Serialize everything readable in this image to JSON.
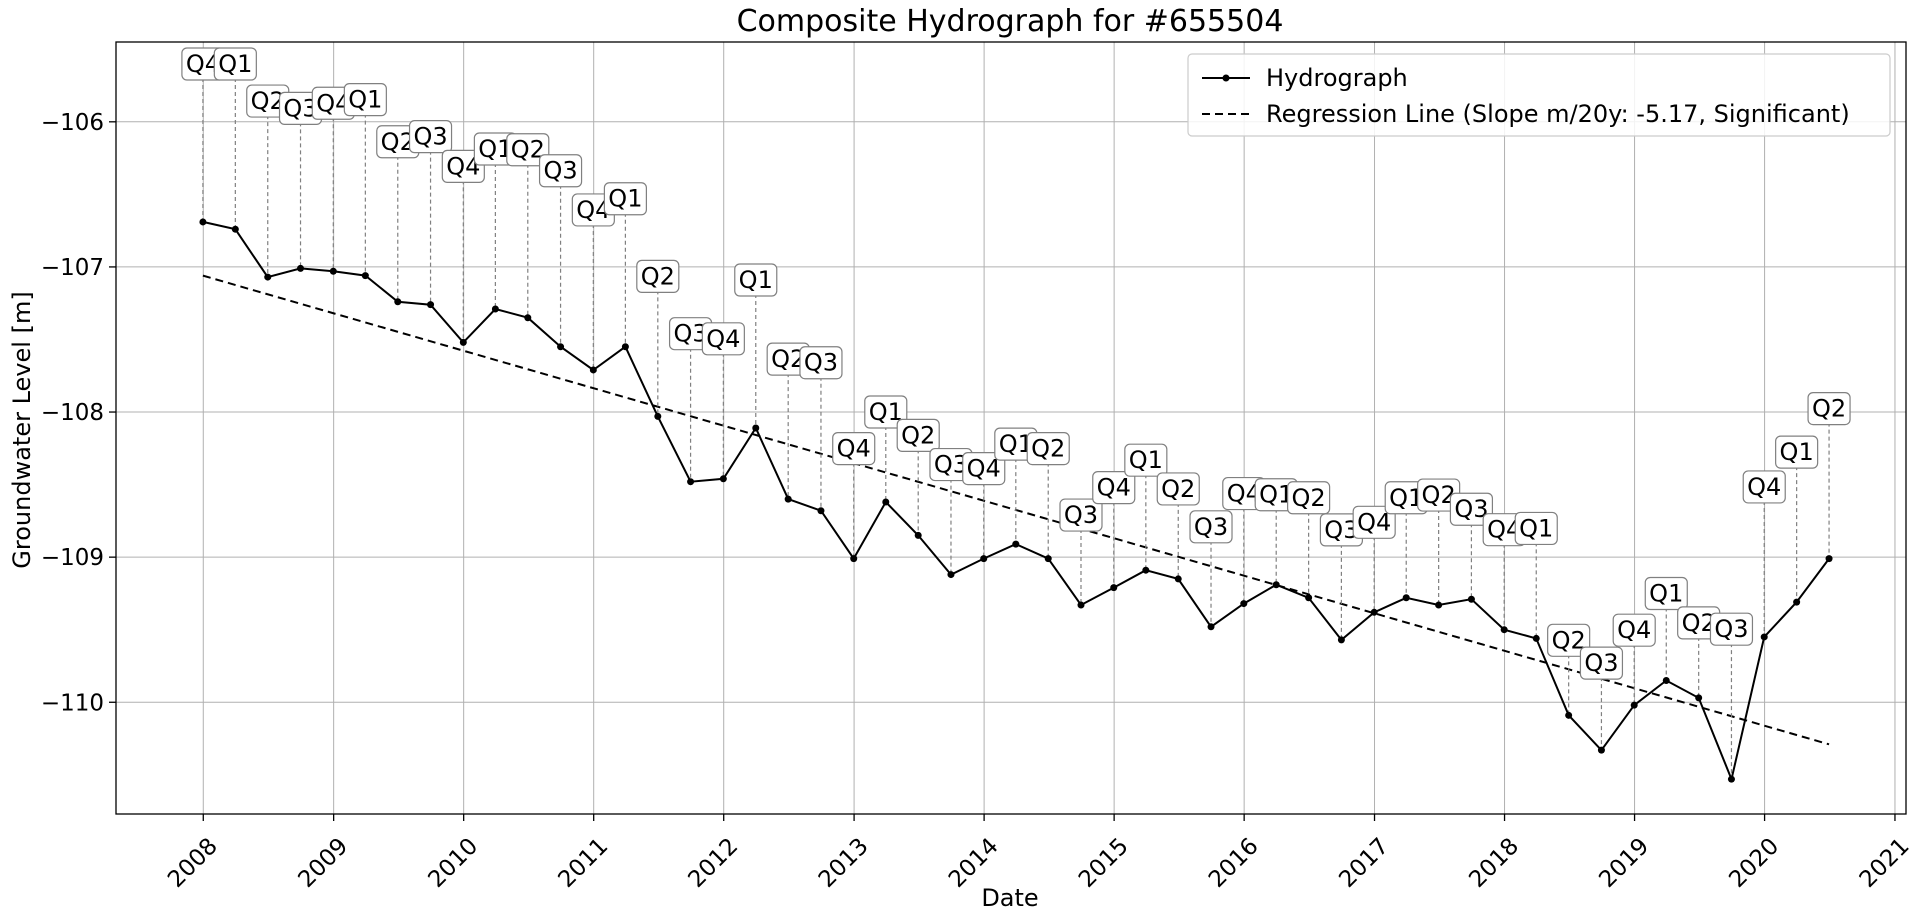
{
  "chart_data": {
    "type": "line",
    "title": "Composite Hydrograph for  #655504",
    "xlabel": "Date",
    "ylabel": "Groundwater Level [m]",
    "x_ticks": [
      "2008",
      "2009",
      "2010",
      "2011",
      "2012",
      "2013",
      "2014",
      "2015",
      "2016",
      "2017",
      "2018",
      "2019",
      "2020",
      "2021"
    ],
    "y_ticks": [
      "−106",
      "−107",
      "−108",
      "−109",
      "−110"
    ],
    "xlim": [
      "2007-05-01",
      "2021-02-01"
    ],
    "ylim": [
      -110.77,
      -105.45
    ],
    "grid": true,
    "legend_position": "top-right",
    "series": [
      {
        "name": "Hydrograph",
        "style": "solid-with-dots",
        "color": "#000000",
        "points": [
          {
            "date": "2007-12-31",
            "y": -106.69,
            "quarter": "Q4"
          },
          {
            "date": "2008-03-31",
            "y": -106.74,
            "quarter": "Q1"
          },
          {
            "date": "2008-06-30",
            "y": -107.07,
            "quarter": "Q2"
          },
          {
            "date": "2008-09-30",
            "y": -107.01,
            "quarter": "Q3"
          },
          {
            "date": "2008-12-31",
            "y": -107.03,
            "quarter": "Q4"
          },
          {
            "date": "2009-03-31",
            "y": -107.06,
            "quarter": "Q1"
          },
          {
            "date": "2009-06-30",
            "y": -107.24,
            "quarter": "Q2"
          },
          {
            "date": "2009-09-30",
            "y": -107.26,
            "quarter": "Q3"
          },
          {
            "date": "2009-12-31",
            "y": -107.52,
            "quarter": "Q4"
          },
          {
            "date": "2010-03-31",
            "y": -107.29,
            "quarter": "Q1"
          },
          {
            "date": "2010-06-30",
            "y": -107.35,
            "quarter": "Q2"
          },
          {
            "date": "2010-09-30",
            "y": -107.55,
            "quarter": "Q3"
          },
          {
            "date": "2010-12-31",
            "y": -107.71,
            "quarter": "Q4"
          },
          {
            "date": "2011-03-31",
            "y": -107.55,
            "quarter": "Q1"
          },
          {
            "date": "2011-06-30",
            "y": -108.03,
            "quarter": "Q2"
          },
          {
            "date": "2011-09-30",
            "y": -108.48,
            "quarter": "Q3"
          },
          {
            "date": "2011-12-31",
            "y": -108.46,
            "quarter": "Q4"
          },
          {
            "date": "2012-03-31",
            "y": -108.11,
            "quarter": "Q1"
          },
          {
            "date": "2012-06-30",
            "y": -108.6,
            "quarter": "Q2"
          },
          {
            "date": "2012-09-30",
            "y": -108.68,
            "quarter": "Q3"
          },
          {
            "date": "2012-12-31",
            "y": -109.01,
            "quarter": "Q4"
          },
          {
            "date": "2013-03-31",
            "y": -108.62,
            "quarter": "Q1"
          },
          {
            "date": "2013-06-30",
            "y": -108.85,
            "quarter": "Q2"
          },
          {
            "date": "2013-09-30",
            "y": -109.12,
            "quarter": "Q3"
          },
          {
            "date": "2013-12-31",
            "y": -109.01,
            "quarter": "Q4"
          },
          {
            "date": "2014-03-31",
            "y": -108.91,
            "quarter": "Q1"
          },
          {
            "date": "2014-06-30",
            "y": -109.01,
            "quarter": "Q2"
          },
          {
            "date": "2014-09-30",
            "y": -109.33,
            "quarter": "Q3"
          },
          {
            "date": "2014-12-31",
            "y": -109.21,
            "quarter": "Q4"
          },
          {
            "date": "2015-03-31",
            "y": -109.09,
            "quarter": "Q1"
          },
          {
            "date": "2015-06-30",
            "y": -109.15,
            "quarter": "Q2"
          },
          {
            "date": "2015-09-30",
            "y": -109.48,
            "quarter": "Q3"
          },
          {
            "date": "2015-12-31",
            "y": -109.32,
            "quarter": "Q4"
          },
          {
            "date": "2016-03-31",
            "y": -109.19,
            "quarter": "Q1"
          },
          {
            "date": "2016-06-30",
            "y": -109.28,
            "quarter": "Q2"
          },
          {
            "date": "2016-09-30",
            "y": -109.57,
            "quarter": "Q3"
          },
          {
            "date": "2016-12-31",
            "y": -109.38,
            "quarter": "Q4"
          },
          {
            "date": "2017-03-31",
            "y": -109.28,
            "quarter": "Q1"
          },
          {
            "date": "2017-06-30",
            "y": -109.33,
            "quarter": "Q2"
          },
          {
            "date": "2017-09-30",
            "y": -109.29,
            "quarter": "Q3"
          },
          {
            "date": "2017-12-31",
            "y": -109.5,
            "quarter": "Q4"
          },
          {
            "date": "2018-03-31",
            "y": -109.56,
            "quarter": "Q1"
          },
          {
            "date": "2018-06-30",
            "y": -110.09,
            "quarter": "Q2"
          },
          {
            "date": "2018-09-30",
            "y": -110.33,
            "quarter": "Q3"
          },
          {
            "date": "2018-12-31",
            "y": -110.02,
            "quarter": "Q4"
          },
          {
            "date": "2019-03-31",
            "y": -109.85,
            "quarter": "Q1"
          },
          {
            "date": "2019-06-30",
            "y": -109.97,
            "quarter": "Q2"
          },
          {
            "date": "2019-09-30",
            "y": -110.53,
            "quarter": "Q3"
          },
          {
            "date": "2019-12-31",
            "y": -109.55,
            "quarter": "Q4"
          },
          {
            "date": "2020-03-31",
            "y": -109.31,
            "quarter": "Q1"
          },
          {
            "date": "2020-06-30",
            "y": -109.01,
            "quarter": "Q2"
          }
        ]
      },
      {
        "name": "Regression Line (Slope m/20y: -5.17, Significant)",
        "style": "dashed",
        "color": "#000000",
        "points": [
          {
            "date": "2007-12-31",
            "y": -107.06
          },
          {
            "date": "2020-06-30",
            "y": -110.29
          }
        ]
      }
    ]
  }
}
